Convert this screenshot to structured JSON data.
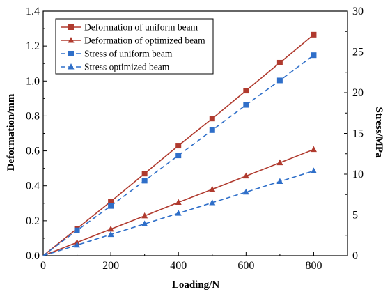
{
  "chart_data": {
    "type": "line",
    "xlabel": "Loading/N",
    "ylabel_left": "Deformation/mm",
    "ylabel_right": "Stress/MPa",
    "xlim": [
      0,
      900
    ],
    "ylim_left": [
      0,
      1.4
    ],
    "ylim_right": [
      0,
      30
    ],
    "x_ticks": [
      "0",
      "200",
      "400",
      "600",
      "800"
    ],
    "y_left_ticks": [
      "0.0",
      "0.2",
      "0.4",
      "0.6",
      "0.8",
      "1.0",
      "1.2",
      "1.4"
    ],
    "y_right_ticks": [
      "0",
      "5",
      "10",
      "15",
      "20",
      "25",
      "30"
    ],
    "grid": false,
    "legend_position": "top-left",
    "x": [
      0,
      100,
      200,
      300,
      400,
      500,
      600,
      700,
      800
    ],
    "series": [
      {
        "name": "Deformation of uniform beam",
        "axis": "left",
        "color": "#b03a2e",
        "line": "solid",
        "marker": "square",
        "values": [
          0,
          0.155,
          0.31,
          0.47,
          0.63,
          0.785,
          0.945,
          1.105,
          1.265
        ]
      },
      {
        "name": "Deformation of optimized beam",
        "axis": "left",
        "color": "#b03a2e",
        "line": "solid",
        "marker": "triangle",
        "values": [
          0,
          0.076,
          0.152,
          0.228,
          0.305,
          0.38,
          0.456,
          0.532,
          0.608
        ]
      },
      {
        "name": "Stress of uniform beam",
        "axis": "right",
        "color": "#2f6fc9",
        "line": "dashed",
        "marker": "square",
        "values": [
          0,
          3.1,
          6.1,
          9.2,
          12.3,
          15.4,
          18.5,
          21.5,
          24.6
        ]
      },
      {
        "name": "Stress optimized beam",
        "axis": "right",
        "color": "#2f6fc9",
        "line": "dashed",
        "marker": "triangle",
        "values": [
          0,
          1.3,
          2.6,
          3.9,
          5.2,
          6.5,
          7.8,
          9.1,
          10.4
        ]
      }
    ]
  }
}
